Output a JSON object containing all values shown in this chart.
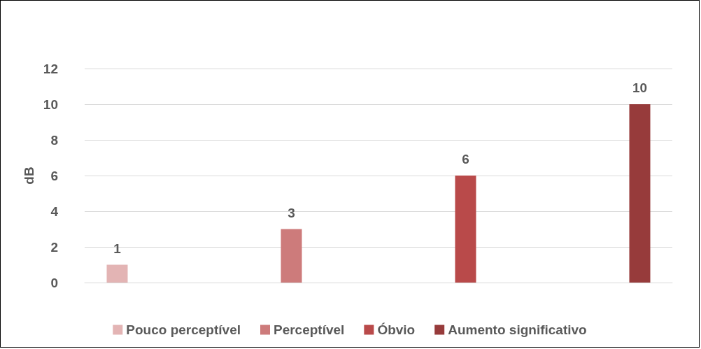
{
  "chart_data": {
    "type": "bar",
    "ylabel": "dB",
    "categories": [
      null
    ],
    "series": [
      {
        "name": "Pouco perceptível",
        "color": "#e3b4b4",
        "values": [
          1
        ]
      },
      {
        "name": "Perceptível",
        "color": "#cd7b7b",
        "values": [
          3
        ]
      },
      {
        "name": "Óbvio",
        "color": "#b94a4a",
        "values": [
          6
        ]
      },
      {
        "name": "Aumento significativo",
        "color": "#973b3b",
        "values": [
          10
        ]
      }
    ],
    "ylim": [
      0,
      12
    ],
    "yticks": [
      0,
      2,
      4,
      6,
      8,
      10,
      12
    ],
    "grid": "y",
    "legend": "bottom",
    "data_labels": true
  }
}
